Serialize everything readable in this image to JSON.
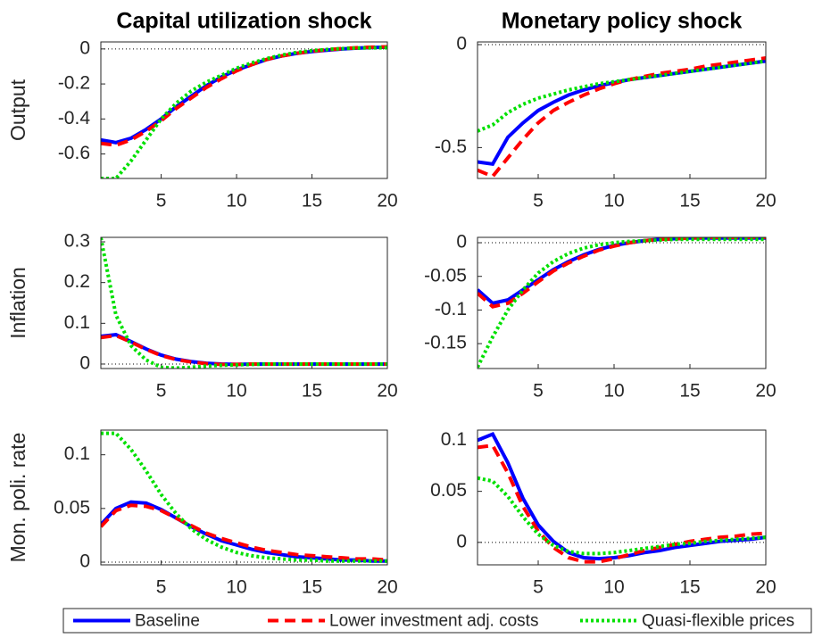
{
  "chart_data": [
    {
      "type": "line",
      "title": "Capital utilization shock",
      "ylabel": "Output",
      "x": [
        1,
        2,
        3,
        4,
        5,
        6,
        7,
        8,
        9,
        10,
        11,
        12,
        13,
        14,
        15,
        16,
        17,
        18,
        19,
        20
      ],
      "xlim": [
        1,
        20
      ],
      "xticks": [
        5,
        10,
        15,
        20
      ],
      "ylim": [
        -0.74,
        0.04
      ],
      "yticks": [
        0,
        -0.2,
        -0.4,
        -0.6
      ],
      "zero_line": true,
      "series": [
        {
          "name": "Baseline",
          "color": "#0000ff",
          "style": "solid",
          "values": [
            -0.52,
            -0.535,
            -0.51,
            -0.46,
            -0.4,
            -0.33,
            -0.27,
            -0.21,
            -0.16,
            -0.12,
            -0.09,
            -0.06,
            -0.04,
            -0.025,
            -0.015,
            -0.007,
            0,
            0.005,
            0.008,
            0.01
          ]
        },
        {
          "name": "Lower investment adj. costs",
          "color": "#ff0000",
          "style": "dashed",
          "values": [
            -0.54,
            -0.55,
            -0.52,
            -0.47,
            -0.41,
            -0.34,
            -0.28,
            -0.22,
            -0.17,
            -0.125,
            -0.09,
            -0.06,
            -0.04,
            -0.025,
            -0.013,
            -0.005,
            0.002,
            0.007,
            0.01,
            0.012
          ]
        },
        {
          "name": "Quasi-flexible prices",
          "color": "#00e000",
          "style": "dotted",
          "values": [
            -0.74,
            -0.74,
            -0.64,
            -0.52,
            -0.4,
            -0.31,
            -0.24,
            -0.19,
            -0.15,
            -0.11,
            -0.08,
            -0.055,
            -0.035,
            -0.02,
            -0.01,
            -0.003,
            0.002,
            0.005,
            0.006,
            0.007
          ]
        }
      ]
    },
    {
      "type": "line",
      "title": "Monetary policy shock",
      "x": [
        1,
        2,
        3,
        4,
        5,
        6,
        7,
        8,
        9,
        10,
        11,
        12,
        13,
        14,
        15,
        16,
        17,
        18,
        19,
        20
      ],
      "xlim": [
        1,
        20
      ],
      "xticks": [
        5,
        10,
        15,
        20
      ],
      "ylim": [
        -0.65,
        0.013
      ],
      "yticks": [
        0,
        -0.5
      ],
      "zero_line": true,
      "series": [
        {
          "color": "#0000ff",
          "style": "solid",
          "values": [
            -0.57,
            -0.58,
            -0.45,
            -0.38,
            -0.32,
            -0.28,
            -0.245,
            -0.22,
            -0.2,
            -0.185,
            -0.17,
            -0.16,
            -0.15,
            -0.14,
            -0.13,
            -0.12,
            -0.11,
            -0.1,
            -0.09,
            -0.08
          ]
        },
        {
          "color": "#ff0000",
          "style": "dashed",
          "values": [
            -0.61,
            -0.64,
            -0.55,
            -0.46,
            -0.38,
            -0.32,
            -0.28,
            -0.245,
            -0.215,
            -0.19,
            -0.17,
            -0.155,
            -0.14,
            -0.13,
            -0.12,
            -0.105,
            -0.095,
            -0.085,
            -0.075,
            -0.065
          ]
        },
        {
          "color": "#00e000",
          "style": "dotted",
          "values": [
            -0.42,
            -0.39,
            -0.33,
            -0.29,
            -0.26,
            -0.24,
            -0.22,
            -0.205,
            -0.19,
            -0.18,
            -0.17,
            -0.16,
            -0.15,
            -0.14,
            -0.13,
            -0.12,
            -0.11,
            -0.1,
            -0.09,
            -0.08
          ]
        }
      ]
    },
    {
      "type": "line",
      "ylabel": "Inflation",
      "x": [
        1,
        2,
        3,
        4,
        5,
        6,
        7,
        8,
        9,
        10,
        11,
        12,
        13,
        14,
        15,
        16,
        17,
        18,
        19,
        20
      ],
      "xlim": [
        1,
        20
      ],
      "xticks": [
        5,
        10,
        15,
        20
      ],
      "ylim": [
        -0.011,
        0.311
      ],
      "yticks": [
        0,
        0.1,
        0.2,
        0.3
      ],
      "zero_line": true,
      "series": [
        {
          "color": "#0000ff",
          "style": "solid",
          "values": [
            0.068,
            0.072,
            0.055,
            0.037,
            0.022,
            0.012,
            0.006,
            0.002,
            0,
            -0.001,
            0,
            0,
            0,
            0,
            0,
            0,
            0,
            0,
            0,
            0
          ]
        },
        {
          "color": "#ff0000",
          "style": "dashed",
          "values": [
            0.065,
            0.07,
            0.054,
            0.036,
            0.021,
            0.011,
            0.005,
            0.001,
            -0.001,
            -0.001,
            0,
            0,
            0,
            0,
            0,
            0,
            0,
            0,
            0,
            0
          ]
        },
        {
          "color": "#00e000",
          "style": "dotted",
          "values": [
            0.31,
            0.12,
            0.045,
            0.01,
            -0.008,
            -0.01,
            -0.008,
            -0.005,
            -0.003,
            -0.002,
            -0.001,
            0,
            0,
            0,
            0,
            0,
            0,
            0,
            0,
            0
          ]
        }
      ]
    },
    {
      "type": "line",
      "x": [
        1,
        2,
        3,
        4,
        5,
        6,
        7,
        8,
        9,
        10,
        11,
        12,
        13,
        14,
        15,
        16,
        17,
        18,
        19,
        20
      ],
      "xlim": [
        1,
        20
      ],
      "xticks": [
        5,
        10,
        15,
        20
      ],
      "ylim": [
        -0.187,
        0.008
      ],
      "yticks": [
        0,
        -0.05,
        -0.1,
        -0.15
      ],
      "zero_line": true,
      "series": [
        {
          "color": "#0000ff",
          "style": "solid",
          "values": [
            -0.07,
            -0.09,
            -0.085,
            -0.07,
            -0.055,
            -0.04,
            -0.028,
            -0.018,
            -0.01,
            -0.004,
            0,
            0.003,
            0.005,
            0.006,
            0.007,
            0.007,
            0.007,
            0.007,
            0.007,
            0.007
          ]
        },
        {
          "color": "#ff0000",
          "style": "dashed",
          "values": [
            -0.075,
            -0.095,
            -0.09,
            -0.075,
            -0.058,
            -0.042,
            -0.03,
            -0.02,
            -0.011,
            -0.005,
            0,
            0.003,
            0.005,
            0.006,
            0.007,
            0.008,
            0.008,
            0.008,
            0.008,
            0.008
          ]
        },
        {
          "color": "#00e000",
          "style": "dotted",
          "values": [
            -0.185,
            -0.14,
            -0.1,
            -0.07,
            -0.045,
            -0.028,
            -0.016,
            -0.008,
            -0.003,
            0,
            0.002,
            0.003,
            0.004,
            0.005,
            0.005,
            0.005,
            0.005,
            0.005,
            0.005,
            0.005
          ]
        }
      ]
    },
    {
      "type": "line",
      "ylabel": "Mon. poli. rate",
      "x": [
        1,
        2,
        3,
        4,
        5,
        6,
        7,
        8,
        9,
        10,
        11,
        12,
        13,
        14,
        15,
        16,
        17,
        18,
        19,
        20
      ],
      "xlim": [
        1,
        20
      ],
      "xticks": [
        5,
        10,
        15,
        20
      ],
      "ylim": [
        -0.0025,
        0.123
      ],
      "yticks": [
        0,
        0.05,
        0.1
      ],
      "zero_line": true,
      "series": [
        {
          "color": "#0000ff",
          "style": "solid",
          "values": [
            0.035,
            0.05,
            0.056,
            0.055,
            0.049,
            0.041,
            0.033,
            0.026,
            0.02,
            0.016,
            0.012,
            0.009,
            0.007,
            0.005,
            0.004,
            0.003,
            0.002,
            0.002,
            0.001,
            0.001
          ]
        },
        {
          "color": "#ff0000",
          "style": "dashed",
          "values": [
            0.033,
            0.048,
            0.053,
            0.052,
            0.048,
            0.041,
            0.034,
            0.027,
            0.022,
            0.018,
            0.014,
            0.011,
            0.009,
            0.007,
            0.006,
            0.005,
            0.004,
            0.003,
            0.003,
            0.002
          ]
        },
        {
          "color": "#00e000",
          "style": "dotted",
          "values": [
            0.12,
            0.12,
            0.105,
            0.085,
            0.063,
            0.045,
            0.031,
            0.021,
            0.014,
            0.009,
            0.006,
            0.004,
            0.003,
            0.002,
            0.002,
            0.001,
            0.001,
            0.001,
            0.001,
            0.001
          ]
        }
      ]
    },
    {
      "type": "line",
      "x": [
        1,
        2,
        3,
        4,
        5,
        6,
        7,
        8,
        9,
        10,
        11,
        12,
        13,
        14,
        15,
        16,
        17,
        18,
        19,
        20
      ],
      "xlim": [
        1,
        20
      ],
      "xticks": [
        5,
        10,
        15,
        20
      ],
      "ylim": [
        -0.022,
        0.11
      ],
      "yticks": [
        0,
        0.05,
        0.1
      ],
      "zero_line": true,
      "series": [
        {
          "color": "#0000ff",
          "style": "solid",
          "values": [
            0.1,
            0.106,
            0.078,
            0.043,
            0.017,
            0.001,
            -0.01,
            -0.015,
            -0.016,
            -0.015,
            -0.013,
            -0.01,
            -0.008,
            -0.005,
            -0.003,
            -0.001,
            0.001,
            0.002,
            0.003,
            0.005
          ]
        },
        {
          "color": "#ff0000",
          "style": "dashed",
          "values": [
            0.093,
            0.095,
            0.068,
            0.035,
            0.011,
            -0.005,
            -0.015,
            -0.019,
            -0.019,
            -0.016,
            -0.012,
            -0.008,
            -0.005,
            -0.002,
            0.001,
            0.003,
            0.005,
            0.006,
            0.008,
            0.009
          ]
        },
        {
          "color": "#00e000",
          "style": "dotted",
          "values": [
            0.063,
            0.06,
            0.045,
            0.025,
            0.008,
            -0.003,
            -0.009,
            -0.011,
            -0.011,
            -0.01,
            -0.008,
            -0.006,
            -0.004,
            -0.002,
            -0.001,
            0.001,
            0.002,
            0.003,
            0.004,
            0.005
          ]
        }
      ]
    }
  ]
}
